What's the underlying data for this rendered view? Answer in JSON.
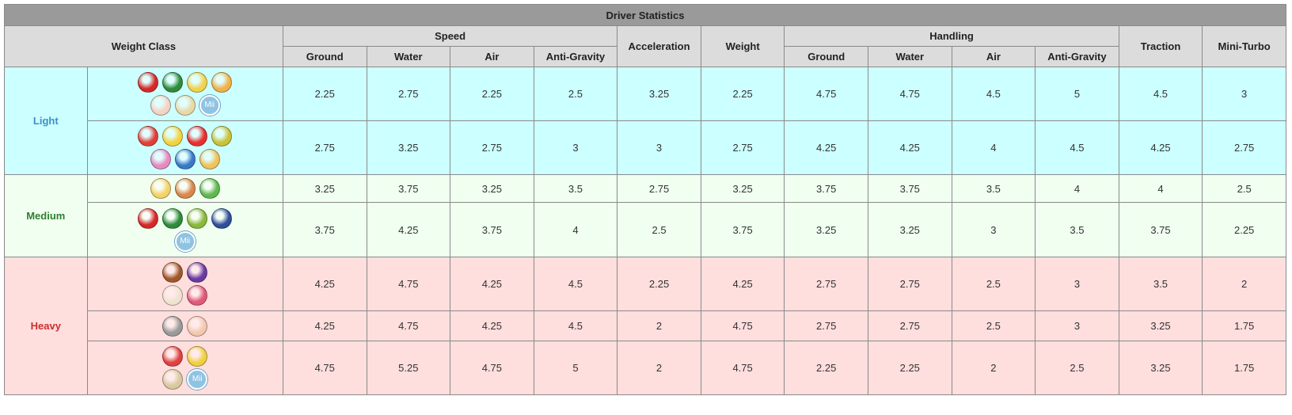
{
  "title": "Driver Statistics",
  "header": {
    "top": [
      "Weight Class",
      "Speed",
      "Acceleration",
      "Weight",
      "Handling",
      "Traction",
      "Mini-Turbo"
    ],
    "sub": [
      "Ground",
      "Water",
      "Air",
      "Anti-Gravity",
      "Ground",
      "Water",
      "Air",
      "Anti-Gravity"
    ]
  },
  "mii_badge": "Mii",
  "classes": [
    {
      "name": "Light",
      "rows": [
        [
          2.25,
          2.75,
          2.25,
          2.5,
          3.25,
          2.25,
          4.75,
          4.75,
          4.5,
          5,
          4.5,
          3
        ],
        [
          2.75,
          3.25,
          2.75,
          3,
          3,
          2.75,
          4.25,
          4.25,
          4,
          4.5,
          4.25,
          2.75
        ]
      ]
    },
    {
      "name": "Medium",
      "rows": [
        [
          3.25,
          3.75,
          3.25,
          3.5,
          2.75,
          3.25,
          3.75,
          3.75,
          3.5,
          4,
          4,
          2.5
        ],
        [
          3.75,
          4.25,
          3.75,
          4,
          2.5,
          3.75,
          3.25,
          3.25,
          3,
          3.5,
          3.75,
          2.25
        ]
      ]
    },
    {
      "name": "Heavy",
      "rows": [
        [
          4.25,
          4.75,
          4.25,
          4.5,
          2.25,
          4.25,
          2.75,
          2.75,
          2.5,
          3,
          3.5,
          2
        ],
        [
          4.25,
          4.75,
          4.25,
          4.5,
          2,
          4.75,
          2.75,
          2.75,
          2.5,
          3,
          3.25,
          1.75
        ],
        [
          4.75,
          5.25,
          4.75,
          5,
          2,
          4.75,
          2.25,
          2.25,
          2,
          2.5,
          3.25,
          1.75
        ]
      ]
    }
  ]
}
